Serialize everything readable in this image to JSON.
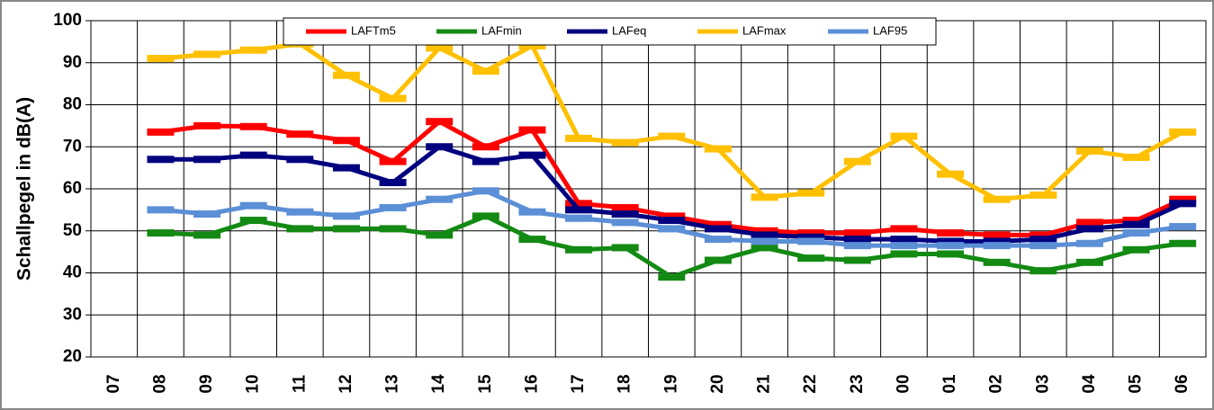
{
  "chart_data": {
    "type": "line",
    "ylabel": "Schallpegel in dB(A)",
    "categories": [
      "07",
      "08",
      "09",
      "10",
      "11",
      "12",
      "13",
      "14",
      "15",
      "16",
      "17",
      "18",
      "19",
      "20",
      "21",
      "22",
      "23",
      "00",
      "01",
      "02",
      "03",
      "04",
      "05",
      "06"
    ],
    "ylim": [
      20,
      100
    ],
    "yticks": [
      20,
      30,
      40,
      50,
      60,
      70,
      80,
      90,
      100
    ],
    "grid": true,
    "series": [
      {
        "name": "LAFTm5",
        "color": "#ff0000",
        "values": [
          null,
          73.5,
          75,
          74.8,
          73,
          71.5,
          66.5,
          76,
          70,
          74,
          56.5,
          55.5,
          53.5,
          51.5,
          50,
          49.5,
          49.5,
          50.5,
          49.5,
          49,
          49,
          52,
          52.5,
          57.5
        ]
      },
      {
        "name": "LAFmin",
        "color": "#138a13",
        "values": [
          null,
          49.5,
          49,
          52.5,
          50.5,
          50.5,
          50.5,
          49,
          53.5,
          48,
          45.5,
          46,
          39,
          43,
          46,
          43.5,
          43,
          44.5,
          44.5,
          42.5,
          40.5,
          42.5,
          45.5,
          47
        ]
      },
      {
        "name": "LAFeq",
        "color": "#00007f",
        "values": [
          null,
          67,
          67,
          68,
          67,
          65,
          61.5,
          70,
          66.5,
          68,
          55,
          54,
          52.5,
          50.5,
          49,
          48.5,
          48,
          48,
          47.5,
          47.5,
          48,
          50.5,
          51.5,
          56.5
        ]
      },
      {
        "name": "LAFmax",
        "color": "#ffc000",
        "values": [
          null,
          91,
          92,
          93,
          94.5,
          87,
          81.5,
          93.5,
          88,
          94,
          72,
          71,
          72.5,
          69.5,
          58,
          59,
          66.5,
          72.5,
          63.5,
          57.5,
          58.5,
          69,
          67.5,
          73.5
        ]
      },
      {
        "name": "LAF95",
        "color": "#5b8fd6",
        "values": [
          null,
          55,
          54,
          56,
          54.5,
          53.5,
          55.5,
          57.5,
          59.5,
          54.5,
          53,
          52,
          50.5,
          48,
          47.5,
          47.5,
          46.5,
          46.5,
          46.5,
          46.5,
          46.5,
          47,
          49.5,
          51
        ]
      }
    ]
  }
}
